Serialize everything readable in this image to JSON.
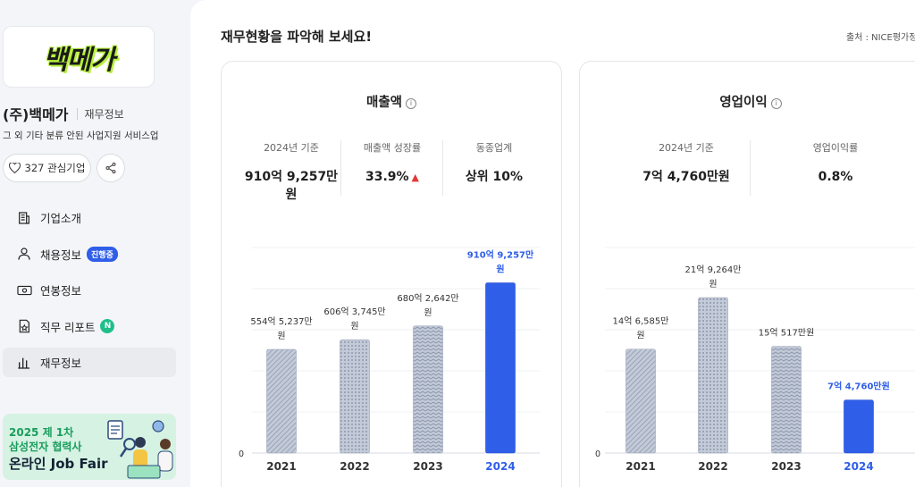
{
  "sidebar": {
    "logo_text": "백메가",
    "company_name": "(주)백메가",
    "company_tag": "재무정보",
    "company_desc": "그 외 기타 분류 안된 사업지원 서비스업",
    "follow_label": "327 관심기업",
    "nav": [
      {
        "label": "기업소개",
        "icon": "building-icon"
      },
      {
        "label": "채용정보",
        "icon": "person-icon",
        "badge": "진행중"
      },
      {
        "label": "연봉정보",
        "icon": "money-icon"
      },
      {
        "label": "직무 리포트",
        "icon": "report-star-icon",
        "badge": "N"
      },
      {
        "label": "재무정보",
        "icon": "bar-chart-icon",
        "active": true
      }
    ],
    "banner": {
      "line1": "2025 제 1차",
      "line2": "삼성전자 협력사",
      "line3": "온라인 Job Fair"
    }
  },
  "main": {
    "section_title": "재무현황을 파악해 보세요!",
    "source": "출처 : NICE평가정",
    "colors": {
      "accent": "#2f5ee8",
      "bar_gray": "#a9b3c6",
      "up": "#e23a3a"
    }
  },
  "revenue": {
    "title": "매출액",
    "metrics": [
      {
        "label": "2024년 기준",
        "value": "910억 9,257만 원"
      },
      {
        "label": "매출액 성장률",
        "value": "33.9%"
      },
      {
        "label": "동종업계",
        "value": "상위 10%"
      }
    ]
  },
  "operating": {
    "title": "영업이익",
    "metrics": [
      {
        "label": "2024년 기준",
        "value": "7억 4,760만원"
      },
      {
        "label": "영업이익률",
        "value": "0.8%"
      }
    ]
  },
  "chart_data": [
    {
      "type": "bar",
      "title": "매출액",
      "categories": [
        "2021",
        "2022",
        "2023",
        "2024"
      ],
      "values": [
        554.5237,
        606.3745,
        680.2642,
        910.9257
      ],
      "data_labels": [
        "554억 5,237만 원",
        "606억 3,745만 원",
        "680억 2,642만 원",
        "910억 9,257만 원"
      ],
      "y_tick_labels": [
        "0"
      ],
      "ylim": [
        0,
        1100
      ],
      "grid": true,
      "highlight_index": 3
    },
    {
      "type": "bar",
      "title": "영업이익",
      "categories": [
        "2021",
        "2022",
        "2023",
        "2024"
      ],
      "values": [
        14.6585,
        21.9264,
        15.0517,
        7.476
      ],
      "data_labels": [
        "14억 6,585만 원",
        "21억 9,264만 원",
        "15억 517만원",
        "7억 4,760만원"
      ],
      "y_tick_labels": [
        "0"
      ],
      "ylim": [
        0,
        29
      ],
      "grid": true,
      "highlight_index": 3
    }
  ]
}
